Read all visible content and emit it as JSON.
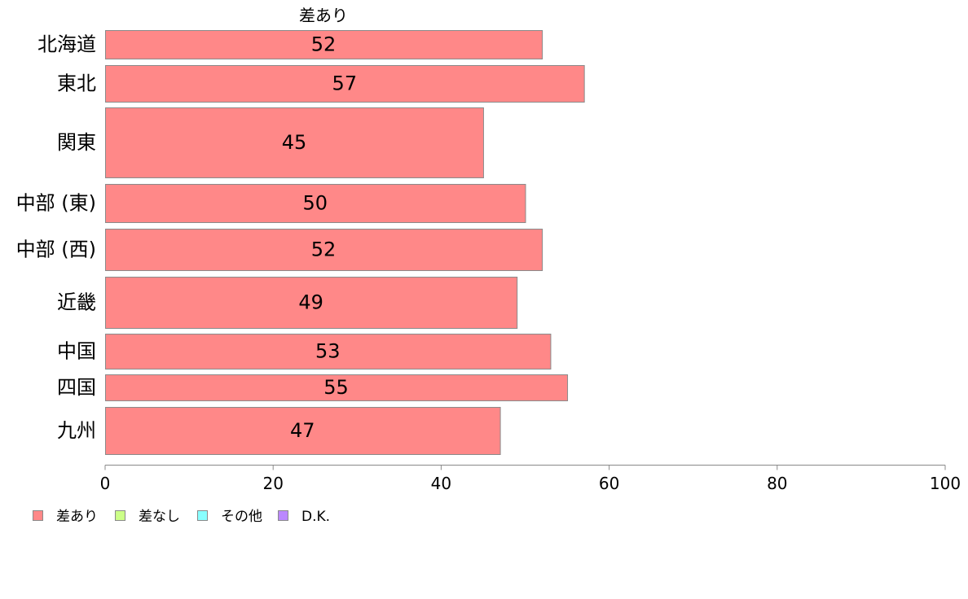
{
  "chart_data": {
    "type": "bar",
    "orientation": "horizontal",
    "title": "",
    "xlabel": "",
    "ylabel": "",
    "xlim": [
      0,
      100
    ],
    "x_ticks": [
      0,
      20,
      40,
      60,
      80,
      100
    ],
    "grid": false,
    "legend_position": "bottom-left",
    "categories": [
      "北海道",
      "東北",
      "関東",
      "中部 (東)",
      "中部 (西)",
      "近畿",
      "中国",
      "四国",
      "九州"
    ],
    "series": [
      {
        "name": "差あり",
        "color": "#ff8888",
        "values": [
          52,
          57,
          45,
          50,
          52,
          49,
          53,
          55,
          47
        ],
        "labels": [
          "52",
          "57",
          "45",
          "50",
          "52",
          "49",
          "53",
          "55",
          "47"
        ]
      }
    ],
    "legend": [
      {
        "label": "差あり",
        "color": "#ff8888"
      },
      {
        "label": "差なし",
        "color": "#ccff88"
      },
      {
        "label": "その他",
        "color": "#88ffff"
      },
      {
        "label": "D.K.",
        "color": "#bb88ff"
      }
    ]
  }
}
